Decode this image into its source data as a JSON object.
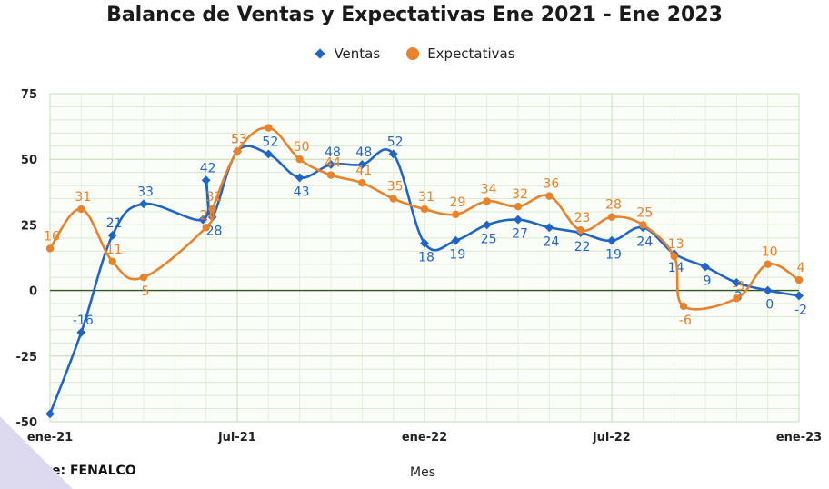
{
  "chart_data": {
    "type": "line",
    "title": "Balance de Ventas y Expectativas Ene 2021 - Ene 2023",
    "xlabel": "Mes",
    "ylabel": "",
    "ylim": [
      -50,
      75
    ],
    "yticks": [
      "75",
      "50",
      "25",
      "0",
      "-25",
      "-50"
    ],
    "xtick_labels": [
      "ene-21",
      "jul-21",
      "ene-22",
      "jul-22",
      "ene-23"
    ],
    "grid": true,
    "legend_position": "top",
    "x": [
      "ene-21",
      "feb-21",
      "mar-21",
      "abr-21",
      "may-21",
      "jun-21",
      "jul-21",
      "ago-21",
      "sep-21",
      "oct-21",
      "nov-21",
      "dic-21",
      "ene-22",
      "feb-22",
      "mar-22",
      "abr-22",
      "may-22",
      "jun-22",
      "jul-22",
      "ago-22",
      "sep-22",
      "oct-22",
      "nov-22",
      "dic-22",
      "ene-23"
    ],
    "series": [
      {
        "name": "Ventas",
        "color": "#1f65c7",
        "marker": "diamond",
        "values": [
          -47,
          -16,
          21,
          33,
          null,
          null,
          null,
          null,
          null,
          null,
          null,
          null,
          18,
          19,
          25,
          27,
          24,
          22,
          19,
          24,
          14,
          9,
          3,
          0,
          -2
        ],
        "points": [
          {
            "x": 0,
            "y": -47,
            "label": null
          },
          {
            "x": 1,
            "y": -16,
            "label": "-16"
          },
          {
            "x": 2,
            "y": 21,
            "label": "21"
          },
          {
            "x": 3,
            "y": 33,
            "label": "33"
          },
          {
            "x": 4.9,
            "y": 27,
            "label": null
          },
          {
            "x": 5,
            "y": 42,
            "label": "42"
          },
          {
            "x": 5.2,
            "y": 28,
            "label": "28"
          },
          {
            "x": 6,
            "y": 53,
            "label": "53"
          },
          {
            "x": 7,
            "y": 52,
            "label": "52"
          },
          {
            "x": 8,
            "y": 43,
            "label": "43"
          },
          {
            "x": 9,
            "y": 48,
            "label": "48"
          },
          {
            "x": 10,
            "y": 48,
            "label": "48"
          },
          {
            "x": 11,
            "y": 52,
            "label": "52"
          },
          {
            "x": 12,
            "y": 18,
            "label": "18"
          },
          {
            "x": 13,
            "y": 19,
            "label": "19"
          },
          {
            "x": 14,
            "y": 25,
            "label": "25"
          },
          {
            "x": 15,
            "y": 27,
            "label": "27"
          },
          {
            "x": 16,
            "y": 24,
            "label": "24"
          },
          {
            "x": 17,
            "y": 22,
            "label": "22"
          },
          {
            "x": 18,
            "y": 19,
            "label": "19"
          },
          {
            "x": 19,
            "y": 24,
            "label": "24"
          },
          {
            "x": 20,
            "y": 14,
            "label": "14"
          },
          {
            "x": 21,
            "y": 9,
            "label": "9"
          },
          {
            "x": 22,
            "y": 3,
            "label": "3"
          },
          {
            "x": 23,
            "y": 0,
            "label": "0"
          },
          {
            "x": 24,
            "y": -2,
            "label": "-2"
          }
        ]
      },
      {
        "name": "Expectativas",
        "color": "#e8822b",
        "marker": "circle",
        "points": [
          {
            "x": 0,
            "y": 16,
            "label": "16"
          },
          {
            "x": 1,
            "y": 31,
            "label": "31"
          },
          {
            "x": 2,
            "y": 11,
            "label": "11"
          },
          {
            "x": 3,
            "y": 5,
            "label": "5"
          },
          {
            "x": 5,
            "y": 24,
            "label": "24"
          },
          {
            "x": 5.2,
            "y": 31,
            "label": "31"
          },
          {
            "x": 6,
            "y": 53,
            "label": "53"
          },
          {
            "x": 7,
            "y": 62,
            "label": null
          },
          {
            "x": 8,
            "y": 50,
            "label": "50"
          },
          {
            "x": 9,
            "y": 44,
            "label": "44"
          },
          {
            "x": 10,
            "y": 41,
            "label": "41"
          },
          {
            "x": 11,
            "y": 35,
            "label": "35"
          },
          {
            "x": 12,
            "y": 31,
            "label": "31"
          },
          {
            "x": 13,
            "y": 29,
            "label": "29"
          },
          {
            "x": 14,
            "y": 34,
            "label": "34"
          },
          {
            "x": 15,
            "y": 32,
            "label": "32"
          },
          {
            "x": 16,
            "y": 36,
            "label": "36"
          },
          {
            "x": 17,
            "y": 23,
            "label": "23"
          },
          {
            "x": 18,
            "y": 28,
            "label": "28"
          },
          {
            "x": 19,
            "y": 25,
            "label": "25"
          },
          {
            "x": 20,
            "y": 13,
            "label": "13"
          },
          {
            "x": 20.3,
            "y": -6,
            "label": "-6"
          },
          {
            "x": 22,
            "y": -3,
            "label": "-3"
          },
          {
            "x": 23,
            "y": 10,
            "label": "10"
          },
          {
            "x": 24,
            "y": 4,
            "label": "4"
          }
        ]
      }
    ]
  },
  "source_note": "Fuente: FENALCO"
}
